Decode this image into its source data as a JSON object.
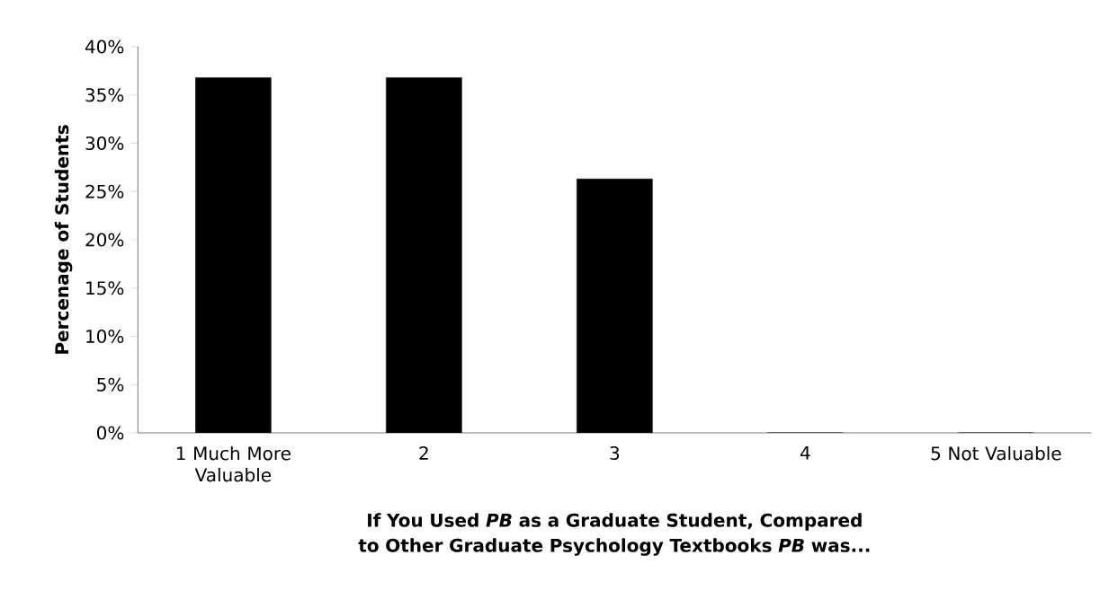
{
  "chart_data": {
    "type": "bar",
    "xlabel": "If You Used *PB* as a Graduate  Student, Compared to Other Graduate Psychology Textbooks *PB* was...",
    "ylabel": "Percenage of Students",
    "categories": [
      "1 Much More Valuable",
      "2",
      "3",
      "4",
      "5 Not Valuable"
    ],
    "values": [
      36.8,
      36.8,
      26.3,
      0,
      0
    ],
    "color": "#000000",
    "ylim": [
      0,
      40
    ],
    "yticks": [
      {
        "value": 0,
        "label": "0%"
      },
      {
        "value": 5,
        "label": "5%"
      },
      {
        "value": 10,
        "label": "10%"
      },
      {
        "value": 15,
        "label": "15%"
      },
      {
        "value": 20,
        "label": "20%"
      },
      {
        "value": 25,
        "label": "25%"
      },
      {
        "value": 30,
        "label": "30%"
      },
      {
        "value": 35,
        "label": "35%"
      },
      {
        "value": 40,
        "label": "40%"
      }
    ]
  }
}
